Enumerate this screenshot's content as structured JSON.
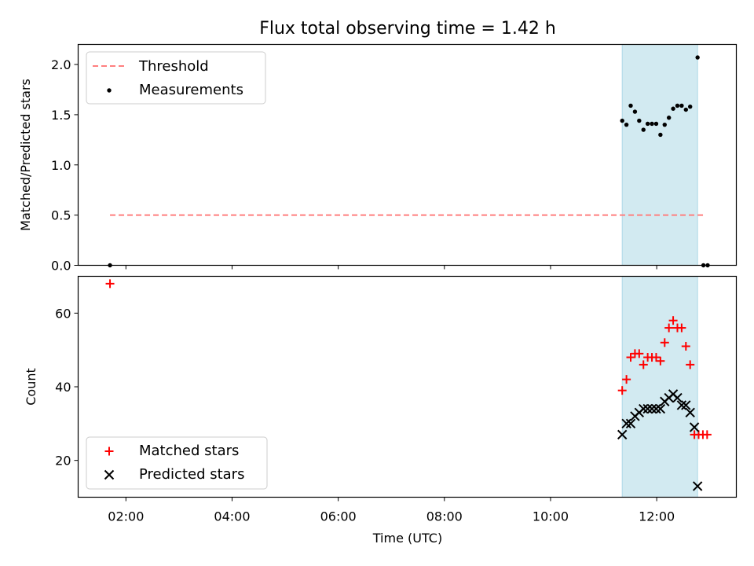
{
  "colors": {
    "threshold": "#ff7f7f",
    "shade": "#add8e6",
    "matched": "#ff0000",
    "predicted": "#000000",
    "measurement": "#000000"
  },
  "chart_data": [
    {
      "type": "scatter",
      "title": "Flux total observing time = 1.42 h",
      "xlabel": "",
      "ylabel": "Matched/Predicted stars",
      "xlim": [
        1.1,
        13.5
      ],
      "ylim": [
        0.0,
        2.2
      ],
      "yticks": [
        0.0,
        0.5,
        1.0,
        1.5,
        2.0
      ],
      "ytick_labels": [
        "0.0",
        "0.5",
        "1.0",
        "1.5",
        "2.0"
      ],
      "shaded_interval": [
        11.35,
        12.77
      ],
      "legend": {
        "position": "upper-left",
        "entries": [
          "Threshold",
          "Measurements"
        ]
      },
      "threshold": {
        "name": "Threshold",
        "x": [
          1.7,
          12.9
        ],
        "y": 0.5,
        "style": "dashed"
      },
      "series": [
        {
          "name": "Measurements",
          "marker": "dot",
          "x": [
            1.7,
            11.35,
            11.43,
            11.51,
            11.59,
            11.67,
            11.75,
            11.83,
            11.91,
            11.99,
            12.07,
            12.15,
            12.23,
            12.31,
            12.39,
            12.47,
            12.55,
            12.63,
            12.77,
            12.88,
            12.96
          ],
          "y": [
            0.0,
            1.44,
            1.4,
            1.59,
            1.53,
            1.44,
            1.35,
            1.41,
            1.41,
            1.41,
            1.3,
            1.4,
            1.47,
            1.56,
            1.59,
            1.59,
            1.55,
            1.58,
            2.07,
            0.0,
            0.0
          ]
        }
      ]
    },
    {
      "type": "scatter",
      "title": "",
      "xlabel": "Time (UTC)",
      "ylabel": "Count",
      "xlim": [
        1.1,
        13.5
      ],
      "ylim": [
        10,
        70
      ],
      "yticks": [
        20,
        40,
        60
      ],
      "ytick_labels": [
        "20",
        "40",
        "60"
      ],
      "xticks": [
        2,
        4,
        6,
        8,
        10,
        12
      ],
      "xtick_labels": [
        "02:00",
        "04:00",
        "06:00",
        "08:00",
        "10:00",
        "12:00"
      ],
      "shaded_interval": [
        11.35,
        12.77
      ],
      "legend": {
        "position": "lower-left",
        "entries": [
          "Matched stars",
          "Predicted stars"
        ]
      },
      "series": [
        {
          "name": "Matched stars",
          "marker": "plus",
          "x": [
            1.7,
            11.35,
            11.43,
            11.51,
            11.59,
            11.67,
            11.75,
            11.83,
            11.91,
            11.99,
            12.07,
            12.15,
            12.23,
            12.31,
            12.39,
            12.47,
            12.55,
            12.63,
            12.71,
            12.79,
            12.87,
            12.95
          ],
          "y": [
            68,
            39,
            42,
            48,
            49,
            49,
            46,
            48,
            48,
            48,
            47,
            52,
            56,
            58,
            56,
            56,
            51,
            46,
            27,
            27,
            27,
            27
          ]
        },
        {
          "name": "Predicted stars",
          "marker": "x",
          "x": [
            11.35,
            11.43,
            11.51,
            11.59,
            11.67,
            11.75,
            11.83,
            11.91,
            11.99,
            12.07,
            12.15,
            12.23,
            12.31,
            12.39,
            12.47,
            12.55,
            12.63,
            12.71,
            12.77
          ],
          "y": [
            27,
            30,
            30,
            32,
            33,
            34,
            34,
            34,
            34,
            34,
            36,
            37,
            38,
            37,
            35,
            35,
            33,
            29,
            13
          ]
        }
      ]
    }
  ]
}
